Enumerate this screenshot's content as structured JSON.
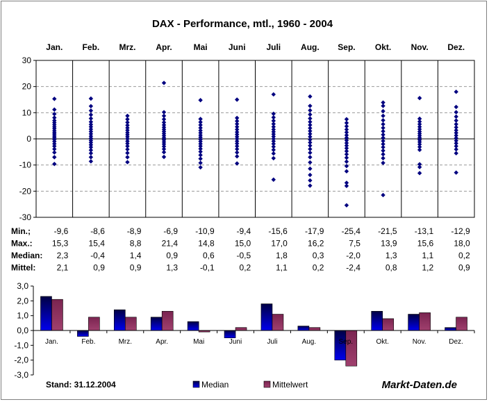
{
  "chart_data": [
    {
      "type": "scatter",
      "title": "DAX - Performance, mtl., 1960 - 2004",
      "categories": [
        "Jan.",
        "Feb.",
        "Mrz.",
        "Apr.",
        "Mai",
        "Juni",
        "Juli",
        "Aug.",
        "Sep.",
        "Okt.",
        "Nov.",
        "Dez."
      ],
      "ylim": [
        -30,
        30
      ],
      "yticks": [
        30,
        20,
        10,
        0,
        -10,
        -20,
        -30
      ],
      "grid": "dashed-horizontal",
      "series": [
        {
          "values": [
            [
              15.3,
              11.2,
              9.5,
              8.1,
              7.0,
              6.2,
              5.4,
              4.6,
              3.9,
              3.1,
              2.4,
              1.8,
              1.1,
              0.5,
              -0.2,
              -1.0,
              -1.9,
              -2.8,
              -3.9,
              -5.2,
              -7.0,
              -9.6
            ],
            [
              15.4,
              12.5,
              10.8,
              9.2,
              7.8,
              6.5,
              5.5,
              4.6,
              3.7,
              2.8,
              1.9,
              1.0,
              0.2,
              -0.6,
              -1.4,
              -2.3,
              -3.2,
              -4.3,
              -5.5,
              -7.0,
              -8.6
            ],
            [
              8.8,
              7.5,
              6.3,
              5.2,
              4.2,
              3.3,
              2.4,
              1.6,
              0.8,
              0.0,
              -0.9,
              -1.8,
              -2.8,
              -4.0,
              -5.4,
              -7.0,
              -8.9
            ],
            [
              21.4,
              10.2,
              8.8,
              7.5,
              6.3,
              5.3,
              4.4,
              3.6,
              2.8,
              2.0,
              1.2,
              0.4,
              -0.4,
              -1.2,
              -2.0,
              -2.9,
              -3.9,
              -5.1,
              -6.9
            ],
            [
              14.8,
              7.6,
              6.4,
              5.3,
              4.2,
              3.2,
              2.3,
              1.4,
              0.6,
              -0.2,
              -1.0,
              -1.9,
              -2.8,
              -3.8,
              -4.9,
              -6.2,
              -7.6,
              -9.2,
              -10.9
            ],
            [
              15.0,
              8.0,
              6.8,
              5.7,
              4.6,
              3.6,
              2.6,
              1.7,
              0.8,
              0.0,
              -0.9,
              -1.8,
              -2.8,
              -3.9,
              -5.2,
              -6.7,
              -9.4
            ],
            [
              17.0,
              9.6,
              8.2,
              6.9,
              5.7,
              4.6,
              3.6,
              2.7,
              1.8,
              0.9,
              0.0,
              -0.9,
              -1.9,
              -3.0,
              -4.2,
              -5.6,
              -7.4,
              -15.6
            ],
            [
              16.2,
              12.6,
              10.9,
              9.3,
              7.8,
              6.5,
              5.3,
              4.1,
              3.0,
              1.9,
              0.8,
              -0.3,
              -1.4,
              -2.6,
              -3.9,
              -5.3,
              -7.0,
              -9.0,
              -11.4,
              -13.8,
              -15.9,
              -17.9
            ],
            [
              7.5,
              6.1,
              4.8,
              3.6,
              2.5,
              1.4,
              0.4,
              -0.6,
              -1.6,
              -2.6,
              -3.6,
              -4.7,
              -5.9,
              -7.2,
              -8.7,
              -10.4,
              -12.4,
              -16.8,
              -18.0,
              -25.4
            ],
            [
              13.9,
              12.6,
              10.6,
              8.8,
              7.1,
              5.6,
              4.2,
              2.9,
              1.6,
              0.4,
              -0.8,
              -2.0,
              -3.2,
              -4.5,
              -5.9,
              -7.4,
              -9.2,
              -21.5
            ],
            [
              15.6,
              7.7,
              6.6,
              5.6,
              4.6,
              3.7,
              2.8,
              2.0,
              1.2,
              0.4,
              -0.4,
              -1.2,
              -2.1,
              -3.1,
              -4.2,
              -9.7,
              -10.8,
              -13.1
            ],
            [
              18.0,
              12.2,
              10.2,
              8.5,
              7.0,
              5.6,
              4.4,
              3.3,
              2.3,
              1.3,
              0.3,
              -0.7,
              -1.7,
              -2.8,
              -4.0,
              -5.5,
              -12.9
            ]
          ]
        }
      ]
    },
    {
      "type": "table",
      "rows": [
        {
          "label": "Min.;",
          "values": [
            "-9,6",
            "-8,6",
            "-8,9",
            "-6,9",
            "-10,9",
            "-9,4",
            "-15,6",
            "-17,9",
            "-25,4",
            "-21,5",
            "-13,1",
            "-12,9"
          ]
        },
        {
          "label": "Max.:",
          "values": [
            "15,3",
            "15,4",
            "8,8",
            "21,4",
            "14,8",
            "15,0",
            "17,0",
            "16,2",
            "7,5",
            "13,9",
            "15,6",
            "18,0"
          ]
        },
        {
          "label": "Median:",
          "values": [
            "2,3",
            "-0,4",
            "1,4",
            "0,9",
            "0,6",
            "-0,5",
            "1,8",
            "0,3",
            "-2,0",
            "1,3",
            "1,1",
            "0,2"
          ]
        },
        {
          "label": "Mittel:",
          "values": [
            "2,1",
            "0,9",
            "0,9",
            "1,3",
            "-0,1",
            "0,2",
            "1,1",
            "0,2",
            "-2,4",
            "0,8",
            "1,2",
            "0,9"
          ]
        }
      ]
    },
    {
      "type": "bar",
      "categories": [
        "Jan.",
        "Feb.",
        "Mrz.",
        "Apr.",
        "Mai",
        "Juni",
        "Juli",
        "Aug.",
        "Sep.",
        "Okt.",
        "Nov.",
        "Dez."
      ],
      "ylim": [
        -3,
        3
      ],
      "yticks": [
        "3,0",
        "2,0",
        "1,0",
        "0,0",
        "-1,0",
        "-2,0",
        "-3,0"
      ],
      "series": [
        {
          "name": "Median",
          "color": "#0000cc",
          "values": [
            2.3,
            -0.4,
            1.4,
            0.9,
            0.6,
            -0.5,
            1.8,
            0.3,
            -2.0,
            1.3,
            1.1,
            0.2
          ]
        },
        {
          "name": "Mittelwert",
          "color": "#993366",
          "values": [
            2.1,
            0.9,
            0.9,
            1.3,
            -0.1,
            0.2,
            1.1,
            0.2,
            -2.4,
            0.8,
            1.2,
            0.9
          ]
        }
      ]
    }
  ],
  "footer": {
    "stand": "Stand: 31.12.2004",
    "brand": "Markt-Daten.de"
  }
}
